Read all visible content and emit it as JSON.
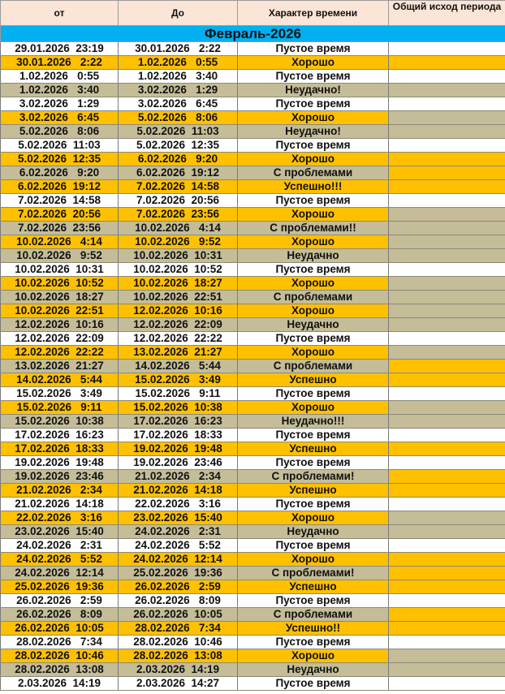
{
  "header": {
    "from": "от",
    "to": "До",
    "type": "Характер времени",
    "outcome": "Общий исход периода"
  },
  "month_label": "Февраль-2026",
  "colors": {
    "W": "#ffffff",
    "O": "#ffc000",
    "T": "#c4bd97",
    "band": "#00b0f0",
    "header": "#fbe5d6"
  },
  "rows": [
    [
      "29.01.2026  23:19",
      "30.01.2026   2:22",
      "Пустое время",
      "W",
      "W"
    ],
    [
      "30.01.2026   2:22",
      "1.02.2026   0:55",
      "Хорошо",
      "O",
      "O"
    ],
    [
      "1.02.2026   0:55",
      "1.02.2026   3:40",
      "Пустое время",
      "W",
      "W"
    ],
    [
      "1.02.2026   3:40",
      "3.02.2026   1:29",
      "Неудачно!",
      "T",
      "T"
    ],
    [
      "3.02.2026   1:29",
      "3.02.2026   6:45",
      "Пустое время",
      "W",
      "W"
    ],
    [
      "3.02.2026   6:45",
      "5.02.2026   8:06",
      "Хорошо",
      "O",
      "T"
    ],
    [
      "5.02.2026   8:06",
      "5.02.2026  11:03",
      "Неудачно!",
      "T",
      "T"
    ],
    [
      "5.02.2026  11:03",
      "5.02.2026  12:35",
      "Пустое время",
      "W",
      "W"
    ],
    [
      "5.02.2026  12:35",
      "6.02.2026   9:20",
      "Хорошо",
      "O",
      "O"
    ],
    [
      "6.02.2026   9:20",
      "6.02.2026  19:12",
      "С проблемами",
      "T",
      "O"
    ],
    [
      "6.02.2026  19:12",
      "7.02.2026  14:58",
      "Успешно!!!",
      "O",
      "O"
    ],
    [
      "7.02.2026  14:58",
      "7.02.2026  20:56",
      "Пустое время",
      "W",
      "W"
    ],
    [
      "7.02.2026  20:56",
      "7.02.2026  23:56",
      "Хорошо",
      "O",
      "T"
    ],
    [
      "7.02.2026  23:56",
      "10.02.2026   4:14",
      "С проблемами!!",
      "T",
      "T"
    ],
    [
      "10.02.2026   4:14",
      "10.02.2026   9:52",
      "Хорошо",
      "O",
      "T"
    ],
    [
      "10.02.2026   9:52",
      "10.02.2026  10:31",
      "Неудачно",
      "T",
      "T"
    ],
    [
      "10.02.2026  10:31",
      "10.02.2026  10:52",
      "Пустое время",
      "W",
      "W"
    ],
    [
      "10.02.2026  10:52",
      "10.02.2026  18:27",
      "Хорошо",
      "O",
      "T"
    ],
    [
      "10.02.2026  18:27",
      "10.02.2026  22:51",
      "С проблемами",
      "T",
      "T"
    ],
    [
      "10.02.2026  22:51",
      "12.02.2026  10:16",
      "Хорошо",
      "O",
      "T"
    ],
    [
      "12.02.2026  10:16",
      "12.02.2026  22:09",
      "Неудачно",
      "T",
      "T"
    ],
    [
      "12.02.2026  22:09",
      "12.02.2026  22:22",
      "Пустое время",
      "W",
      "W"
    ],
    [
      "12.02.2026  22:22",
      "13.02.2026  21:27",
      "Хорошо",
      "O",
      "T"
    ],
    [
      "13.02.2026  21:27",
      "14.02.2026   5:44",
      "С проблемами",
      "T",
      "O"
    ],
    [
      "14.02.2026   5:44",
      "15.02.2026   3:49",
      "Успешно",
      "O",
      "O"
    ],
    [
      "15.02.2026   3:49",
      "15.02.2026   9:11",
      "Пустое время",
      "W",
      "W"
    ],
    [
      "15.02.2026   9:11",
      "15.02.2026  10:38",
      "Хорошо",
      "O",
      "T"
    ],
    [
      "15.02.2026  10:38",
      "17.02.2026  16:23",
      "Неудачно!!!",
      "T",
      "T"
    ],
    [
      "17.02.2026  16:23",
      "17.02.2026  18:33",
      "Пустое время",
      "W",
      "W"
    ],
    [
      "17.02.2026  18:33",
      "19.02.2026  19:48",
      "Успешно",
      "O",
      "O"
    ],
    [
      "19.02.2026  19:48",
      "19.02.2026  23:46",
      "Пустое время",
      "W",
      "W"
    ],
    [
      "19.02.2026  23:46",
      "21.02.2026   2:34",
      "С проблемами!",
      "T",
      "O"
    ],
    [
      "21.02.2026   2:34",
      "21.02.2026  14:18",
      "Успешно",
      "O",
      "O"
    ],
    [
      "21.02.2026  14:18",
      "22.02.2026   3:16",
      "Пустое время",
      "W",
      "W"
    ],
    [
      "22.02.2026   3:16",
      "23.02.2026  15:40",
      "Хорошо",
      "O",
      "T"
    ],
    [
      "23.02.2026  15:40",
      "24.02.2026   2:31",
      "Неудачно",
      "T",
      "T"
    ],
    [
      "24.02.2026   2:31",
      "24.02.2026   5:52",
      "Пустое время",
      "W",
      "W"
    ],
    [
      "24.02.2026   5:52",
      "24.02.2026  12:14",
      "Хорошо",
      "O",
      "O"
    ],
    [
      "24.02.2026  12:14",
      "25.02.2026  19:36",
      "С проблемами!",
      "T",
      "O"
    ],
    [
      "25.02.2026  19:36",
      "26.02.2026   2:59",
      "Успешно",
      "O",
      "O"
    ],
    [
      "26.02.2026   2:59",
      "26.02.2026   8:09",
      "Пустое время",
      "W",
      "W"
    ],
    [
      "26.02.2026   8:09",
      "26.02.2026  10:05",
      "С проблемами",
      "T",
      "O"
    ],
    [
      "26.02.2026  10:05",
      "28.02.2026   7:34",
      "Успешно!!",
      "O",
      "O"
    ],
    [
      "28.02.2026   7:34",
      "28.02.2026  10:46",
      "Пустое время",
      "W",
      "W"
    ],
    [
      "28.02.2026  10:46",
      "28.02.2026  13:08",
      "Хорошо",
      "O",
      "T"
    ],
    [
      "28.02.2026  13:08",
      "2.03.2026  14:19",
      "Неудачно",
      "T",
      "T"
    ],
    [
      "2.03.2026  14:19",
      "2.03.2026  14:27",
      "Пустое время",
      "W",
      "W"
    ]
  ]
}
